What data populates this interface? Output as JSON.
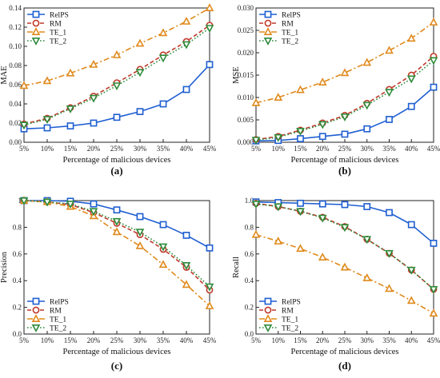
{
  "chart_data": [
    {
      "type": "line",
      "panel": "(a)",
      "xlabel": "Percentage of malicious devices",
      "ylabel": "MAE",
      "categories": [
        "5%",
        "10%",
        "15%",
        "20%",
        "25%",
        "30%",
        "35%",
        "40%",
        "45%"
      ],
      "yticks": [
        "0.00",
        "0.02",
        "0.04",
        "0.06",
        "0.08",
        "0.10",
        "0.12",
        "0.14"
      ],
      "ylim": [
        0,
        0.14
      ],
      "legend_position": "top-left",
      "series": [
        {
          "name": "RelPS",
          "color": "#1f5fd1",
          "marker": "square",
          "dash": "solid",
          "values": [
            0.014,
            0.015,
            0.017,
            0.02,
            0.026,
            0.032,
            0.04,
            0.055,
            0.081
          ]
        },
        {
          "name": "RM",
          "color": "#c0392b",
          "marker": "circle",
          "dash": "dashed",
          "values": [
            0.019,
            0.025,
            0.036,
            0.048,
            0.062,
            0.076,
            0.091,
            0.105,
            0.122
          ]
        },
        {
          "name": "TE_1",
          "color": "#e08a1c",
          "marker": "triangle-up",
          "dash": "dashdot",
          "values": [
            0.059,
            0.064,
            0.072,
            0.081,
            0.091,
            0.103,
            0.114,
            0.126,
            0.14
          ]
        },
        {
          "name": "TE_2",
          "color": "#2e8b3a",
          "marker": "triangle-down",
          "dash": "dotted",
          "values": [
            0.018,
            0.024,
            0.035,
            0.046,
            0.059,
            0.073,
            0.088,
            0.102,
            0.119
          ]
        }
      ]
    },
    {
      "type": "line",
      "panel": "(b)",
      "xlabel": "Percentage of malicious devices",
      "ylabel": "MSE",
      "categories": [
        "5%",
        "10%",
        "15%",
        "20%",
        "25%",
        "30%",
        "35%",
        "40%",
        "45%"
      ],
      "yticks": [
        "0.000",
        "0.005",
        "0.010",
        "0.015",
        "0.020",
        "0.025",
        "0.030"
      ],
      "ylim": [
        0,
        0.03
      ],
      "legend_position": "top-left",
      "series": [
        {
          "name": "RelPS",
          "color": "#1f5fd1",
          "marker": "square",
          "dash": "solid",
          "values": [
            0.0003,
            0.0004,
            0.0008,
            0.0013,
            0.0018,
            0.003,
            0.0051,
            0.008,
            0.0123
          ]
        },
        {
          "name": "RM",
          "color": "#c0392b",
          "marker": "circle",
          "dash": "dashed",
          "values": [
            0.0006,
            0.0013,
            0.0027,
            0.0043,
            0.006,
            0.0087,
            0.0118,
            0.015,
            0.0192
          ]
        },
        {
          "name": "TE_1",
          "color": "#e08a1c",
          "marker": "triangle-up",
          "dash": "dashdot",
          "values": [
            0.0088,
            0.01,
            0.0117,
            0.0134,
            0.0155,
            0.0178,
            0.0205,
            0.0232,
            0.0268
          ]
        },
        {
          "name": "TE_2",
          "color": "#2e8b3a",
          "marker": "triangle-down",
          "dash": "dotted",
          "values": [
            0.0005,
            0.0011,
            0.0025,
            0.004,
            0.0057,
            0.0083,
            0.0112,
            0.0142,
            0.0183
          ]
        }
      ]
    },
    {
      "type": "line",
      "panel": "(c)",
      "xlabel": "Percentage of malicious devices",
      "ylabel": "Precision",
      "categories": [
        "5%",
        "10%",
        "15%",
        "20%",
        "25%",
        "30%",
        "35%",
        "40%",
        "45%"
      ],
      "yticks": [
        "0.0",
        "0.2",
        "0.4",
        "0.6",
        "0.8",
        "1"
      ],
      "ylim": [
        0,
        1
      ],
      "legend_position": "bottom-left",
      "series": [
        {
          "name": "RelPS",
          "color": "#1f5fd1",
          "marker": "square",
          "dash": "solid",
          "values": [
            1.0,
            1.0,
            0.995,
            0.975,
            0.93,
            0.88,
            0.82,
            0.74,
            0.645
          ]
        },
        {
          "name": "RM",
          "color": "#c0392b",
          "marker": "circle",
          "dash": "dashed",
          "values": [
            1.0,
            0.99,
            0.97,
            0.91,
            0.83,
            0.745,
            0.635,
            0.5,
            0.33
          ]
        },
        {
          "name": "TE_1",
          "color": "#e08a1c",
          "marker": "triangle-up",
          "dash": "dashdot",
          "values": [
            1.0,
            0.99,
            0.955,
            0.885,
            0.765,
            0.66,
            0.52,
            0.37,
            0.21
          ]
        },
        {
          "name": "TE_2",
          "color": "#2e8b3a",
          "marker": "triangle-down",
          "dash": "dotted",
          "values": [
            1.0,
            0.99,
            0.975,
            0.92,
            0.845,
            0.765,
            0.655,
            0.515,
            0.355
          ]
        }
      ]
    },
    {
      "type": "line",
      "panel": "(d)",
      "xlabel": "Percentage of malicious devices",
      "ylabel": "Recall",
      "categories": [
        "5%",
        "10%",
        "15%",
        "20%",
        "25%",
        "30%",
        "35%",
        "40%",
        "45%"
      ],
      "yticks": [
        "0.0",
        "0.2",
        "0.4",
        "0.6",
        "0.8",
        "1.0"
      ],
      "ylim": [
        0,
        1
      ],
      "legend_position": "bottom-left",
      "series": [
        {
          "name": "RelPS",
          "color": "#1f5fd1",
          "marker": "square",
          "dash": "solid",
          "values": [
            0.99,
            0.985,
            0.98,
            0.975,
            0.97,
            0.955,
            0.91,
            0.82,
            0.68
          ]
        },
        {
          "name": "RM",
          "color": "#c0392b",
          "marker": "circle",
          "dash": "dashed",
          "values": [
            0.98,
            0.955,
            0.92,
            0.875,
            0.805,
            0.71,
            0.605,
            0.48,
            0.335
          ]
        },
        {
          "name": "TE_1",
          "color": "#e08a1c",
          "marker": "triangle-up",
          "dash": "dashdot",
          "values": [
            0.745,
            0.695,
            0.64,
            0.575,
            0.5,
            0.42,
            0.34,
            0.25,
            0.155
          ]
        },
        {
          "name": "TE_2",
          "color": "#2e8b3a",
          "marker": "triangle-down",
          "dash": "dotted",
          "values": [
            0.975,
            0.955,
            0.92,
            0.87,
            0.8,
            0.71,
            0.605,
            0.48,
            0.335
          ]
        }
      ]
    }
  ]
}
